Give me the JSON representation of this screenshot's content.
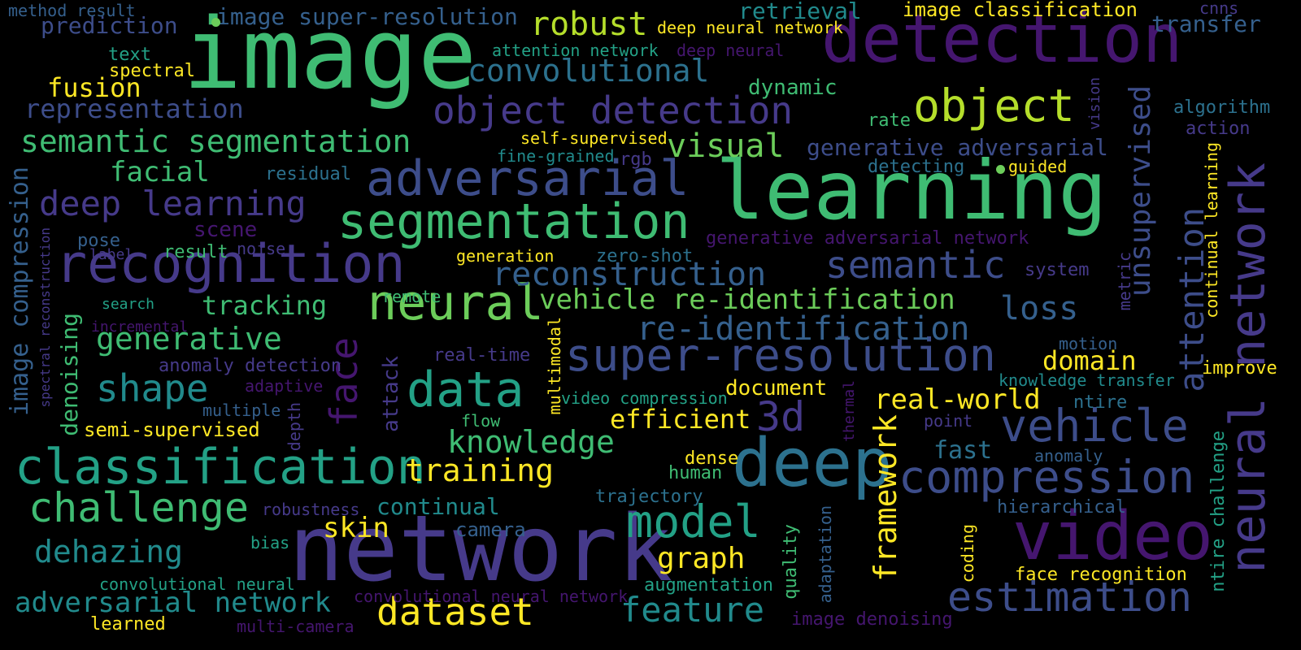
{
  "cloud": {
    "background": "#000000",
    "colors": {
      "purple": "#45166f",
      "indigo": "#463a8a",
      "blue": "#3d4d8a",
      "slate": "#35608d",
      "teal": "#2c718e",
      "cyan": "#218a8c",
      "aqua": "#23a186",
      "green": "#3fbc73",
      "lime": "#6ccd5a",
      "yellowgreen": "#b5de2b",
      "yellow": "#fde725"
    },
    "words": [
      {
        "id": "image",
        "text": "image",
        "color": "green"
      },
      {
        "id": "detection",
        "text": "detection",
        "color": "purple"
      },
      {
        "id": "learning",
        "text": "learning",
        "color": "green"
      },
      {
        "id": "network",
        "text": "network",
        "color": "indigo"
      },
      {
        "id": "video",
        "text": "video",
        "color": "purple"
      },
      {
        "id": "deep",
        "text": "deep",
        "color": "teal"
      },
      {
        "id": "recognition",
        "text": "recognition",
        "color": "indigo"
      },
      {
        "id": "neural-network",
        "text": "neural network",
        "color": "indigo"
      },
      {
        "id": "segmentation",
        "text": "segmentation",
        "color": "green"
      },
      {
        "id": "adversarial",
        "text": "adversarial",
        "color": "blue"
      },
      {
        "id": "classification",
        "text": "classification",
        "color": "aqua"
      },
      {
        "id": "neural",
        "text": "neural",
        "color": "lime"
      },
      {
        "id": "data",
        "text": "data",
        "color": "aqua"
      },
      {
        "id": "object",
        "text": "object",
        "color": "yellowgreen"
      },
      {
        "id": "super-resolution",
        "text": "super-resolution",
        "color": "blue"
      },
      {
        "id": "face",
        "text": "face",
        "color": "purple"
      },
      {
        "id": "compression",
        "text": "compression",
        "color": "blue"
      },
      {
        "id": "estimation",
        "text": "estimation",
        "color": "blue"
      },
      {
        "id": "vehicle",
        "text": "vehicle",
        "color": "blue"
      },
      {
        "id": "model",
        "text": "model",
        "color": "aqua"
      },
      {
        "id": "challenge",
        "text": "challenge",
        "color": "green"
      },
      {
        "id": "object-detection",
        "text": "object detection",
        "color": "indigo"
      },
      {
        "id": "semantic",
        "text": "semantic",
        "color": "blue"
      },
      {
        "id": "attention",
        "text": "attention",
        "color": "blue"
      },
      {
        "id": "3d",
        "text": "3d",
        "color": "indigo"
      },
      {
        "id": "reconstruction",
        "text": "reconstruction",
        "color": "slate"
      },
      {
        "id": "re-identification",
        "text": "re-identification",
        "color": "slate"
      },
      {
        "id": "dataset",
        "text": "dataset",
        "color": "yellow"
      },
      {
        "id": "semantic-segmentation",
        "text": "semantic segmentation",
        "color": "green"
      },
      {
        "id": "deep-learning",
        "text": "deep learning",
        "color": "indigo"
      },
      {
        "id": "unsupervised",
        "text": "unsupervised",
        "color": "blue"
      },
      {
        "id": "feature",
        "text": "feature",
        "color": "cyan"
      },
      {
        "id": "framework",
        "text": "framework",
        "color": "yellow"
      },
      {
        "id": "shape",
        "text": "shape",
        "color": "cyan"
      },
      {
        "id": "training",
        "text": "training",
        "color": "yellow"
      },
      {
        "id": "convolutional",
        "text": "convolutional",
        "color": "teal"
      },
      {
        "id": "robust",
        "text": "robust",
        "color": "yellowgreen"
      },
      {
        "id": "visual",
        "text": "visual",
        "color": "lime"
      },
      {
        "id": "generative",
        "text": "generative",
        "color": "green"
      },
      {
        "id": "knowledge",
        "text": "knowledge",
        "color": "green"
      },
      {
        "id": "vehicle-re-identification",
        "text": "vehicle re-identification",
        "color": "lime"
      },
      {
        "id": "adversarial-network",
        "text": "adversarial network",
        "color": "cyan"
      },
      {
        "id": "dehazing",
        "text": "dehazing",
        "color": "cyan"
      },
      {
        "id": "real-world",
        "text": "real-world",
        "color": "yellow"
      },
      {
        "id": "image-compression",
        "text": "image compression",
        "color": "slate"
      },
      {
        "id": "graph",
        "text": "graph",
        "color": "yellow"
      },
      {
        "id": "loss",
        "text": "loss",
        "color": "slate"
      },
      {
        "id": "representation",
        "text": "representation",
        "color": "blue"
      },
      {
        "id": "tracking",
        "text": "tracking",
        "color": "green"
      },
      {
        "id": "facial",
        "text": "facial",
        "color": "green"
      },
      {
        "id": "domain",
        "text": "domain",
        "color": "yellow"
      },
      {
        "id": "efficient",
        "text": "efficient",
        "color": "yellow"
      },
      {
        "id": "image-super-resolution",
        "text": "image super-resolution",
        "color": "slate"
      },
      {
        "id": "generative-adversarial",
        "text": "generative adversarial",
        "color": "blue"
      },
      {
        "id": "skin",
        "text": "skin",
        "color": "yellow"
      },
      {
        "id": "fast",
        "text": "fast",
        "color": "teal"
      },
      {
        "id": "retrieval",
        "text": "retrieval",
        "color": "cyan"
      },
      {
        "id": "transfer",
        "text": "transfer",
        "color": "slate"
      },
      {
        "id": "continual",
        "text": "continual",
        "color": "cyan"
      },
      {
        "id": "prediction",
        "text": "prediction",
        "color": "blue"
      },
      {
        "id": "fusion",
        "text": "fusion",
        "color": "yellow"
      },
      {
        "id": "document",
        "text": "document",
        "color": "yellow"
      },
      {
        "id": "denoising",
        "text": "denoising",
        "color": "green"
      },
      {
        "id": "image-classification",
        "text": "image classification",
        "color": "yellow"
      },
      {
        "id": "dynamic",
        "text": "dynamic",
        "color": "green"
      },
      {
        "id": "generative-adversarial-network",
        "text": "generative adversarial network",
        "color": "purple"
      },
      {
        "id": "semi-supervised",
        "text": "semi-supervised",
        "color": "yellow"
      },
      {
        "id": "camera",
        "text": "camera",
        "color": "slate"
      },
      {
        "id": "ntire-challenge",
        "text": "ntire challenge",
        "color": "aqua"
      },
      {
        "id": "continual-learning",
        "text": "continual learning",
        "color": "yellow"
      },
      {
        "id": "attack",
        "text": "attack",
        "color": "indigo"
      },
      {
        "id": "scene",
        "text": "scene",
        "color": "purple"
      },
      {
        "id": "quality",
        "text": "quality",
        "color": "green"
      },
      {
        "id": "improve",
        "text": "improve",
        "color": "yellow"
      },
      {
        "id": "ntire",
        "text": "ntire",
        "color": "teal"
      },
      {
        "id": "metric",
        "text": "metric",
        "color": "indigo"
      },
      {
        "id": "face-recognition",
        "text": "face recognition",
        "color": "yellow"
      },
      {
        "id": "zero-shot",
        "text": "zero-shot",
        "color": "teal"
      },
      {
        "id": "algorithm",
        "text": "algorithm",
        "color": "teal"
      },
      {
        "id": "hierarchical",
        "text": "hierarchical",
        "color": "slate"
      },
      {
        "id": "action",
        "text": "action",
        "color": "indigo"
      },
      {
        "id": "dense",
        "text": "dense",
        "color": "yellow"
      },
      {
        "id": "human",
        "text": "human",
        "color": "green"
      },
      {
        "id": "trajectory",
        "text": "trajectory",
        "color": "teal"
      },
      {
        "id": "augmentation",
        "text": "augmentation",
        "color": "aqua"
      },
      {
        "id": "multimodal",
        "text": "multimodal",
        "color": "yellow"
      },
      {
        "id": "residual",
        "text": "residual",
        "color": "teal"
      },
      {
        "id": "rgb",
        "text": "rgb",
        "color": "indigo"
      },
      {
        "id": "self-supervised",
        "text": "self-supervised",
        "color": "yellow"
      },
      {
        "id": "fine-grained",
        "text": "fine-grained",
        "color": "cyan"
      },
      {
        "id": "detecting",
        "text": "detecting",
        "color": "teal"
      },
      {
        "id": "guided",
        "text": "guided",
        "color": "yellow"
      },
      {
        "id": "pose",
        "text": "pose",
        "color": "slate"
      },
      {
        "id": "result",
        "text": "result",
        "color": "green"
      },
      {
        "id": "label",
        "text": "label",
        "color": "indigo"
      },
      {
        "id": "noise",
        "text": "noise",
        "color": "indigo"
      },
      {
        "id": "generation",
        "text": "generation",
        "color": "yellow"
      },
      {
        "id": "remote",
        "text": "remote",
        "color": "green"
      },
      {
        "id": "search",
        "text": "search",
        "color": "aqua"
      },
      {
        "id": "incremental",
        "text": "incremental",
        "color": "purple"
      },
      {
        "id": "anomaly-detection",
        "text": "anomaly detection",
        "color": "indigo"
      },
      {
        "id": "real-time",
        "text": "real-time",
        "color": "indigo"
      },
      {
        "id": "adaptive",
        "text": "adaptive",
        "color": "purple"
      },
      {
        "id": "multiple",
        "text": "multiple",
        "color": "slate"
      },
      {
        "id": "flow",
        "text": "flow",
        "color": "green"
      },
      {
        "id": "video-compression",
        "text": "video compression",
        "color": "aqua"
      },
      {
        "id": "knowledge-transfer",
        "text": "knowledge transfer",
        "color": "cyan"
      },
      {
        "id": "point",
        "text": "point",
        "color": "indigo"
      },
      {
        "id": "anomaly",
        "text": "anomaly",
        "color": "slate"
      },
      {
        "id": "motion",
        "text": "motion",
        "color": "slate"
      },
      {
        "id": "system",
        "text": "system",
        "color": "indigo"
      },
      {
        "id": "rate",
        "text": "rate",
        "color": "green"
      },
      {
        "id": "vision",
        "text": "vision",
        "color": "indigo"
      },
      {
        "id": "cnns",
        "text": "cnns",
        "color": "indigo"
      },
      {
        "id": "attention-network",
        "text": "attention network",
        "color": "aqua"
      },
      {
        "id": "deep-neural",
        "text": "deep neural",
        "color": "purple"
      },
      {
        "id": "deep-neural-network",
        "text": "deep neural network",
        "color": "yellow"
      },
      {
        "id": "method-result",
        "text": "method result",
        "color": "slate"
      },
      {
        "id": "text",
        "text": "text",
        "color": "aqua"
      },
      {
        "id": "spectral",
        "text": "spectral",
        "color": "yellow"
      },
      {
        "id": "spectral-reconstruction",
        "text": "spectral reconstruction",
        "color": "indigo"
      },
      {
        "id": "depth",
        "text": "depth",
        "color": "indigo"
      },
      {
        "id": "robustness",
        "text": "robustness",
        "color": "indigo"
      },
      {
        "id": "bias",
        "text": "bias",
        "color": "aqua"
      },
      {
        "id": "convolutional-neural",
        "text": "convolutional neural",
        "color": "aqua"
      },
      {
        "id": "convolutional-neural-network",
        "text": "convolutional neural network",
        "color": "purple"
      },
      {
        "id": "learned",
        "text": "learned",
        "color": "yellow"
      },
      {
        "id": "multi-camera",
        "text": "multi-camera",
        "color": "purple"
      },
      {
        "id": "image-denoising",
        "text": "image denoising",
        "color": "purple"
      },
      {
        "id": "adaptation",
        "text": "adaptation",
        "color": "slate"
      },
      {
        "id": "coding",
        "text": "coding",
        "color": "yellow"
      },
      {
        "id": "thermal",
        "text": "thermal",
        "color": "purple"
      }
    ]
  }
}
